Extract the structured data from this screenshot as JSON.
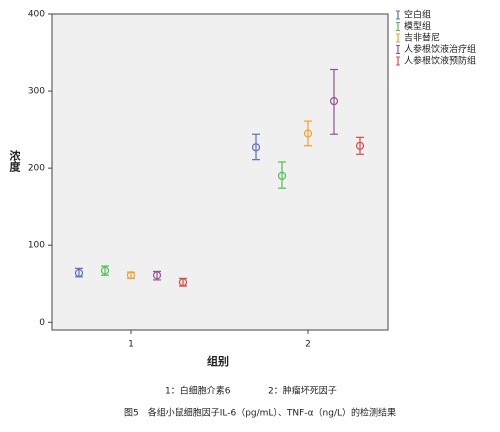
{
  "chart_data": {
    "type": "errorbar",
    "xlabel": "组别",
    "ylabel": "浓度",
    "categories": [
      "1",
      "2"
    ],
    "ylim": [
      -10,
      400
    ],
    "yticks": [
      0,
      100,
      200,
      300,
      400
    ],
    "legend": "outside-right",
    "series": [
      {
        "name": "空白组",
        "color": "#5b6fc4",
        "values": [
          64,
          227
        ],
        "low": [
          59,
          211
        ],
        "high": [
          70,
          244
        ]
      },
      {
        "name": "模型组",
        "color": "#4fc04f",
        "values": [
          67,
          190
        ],
        "low": [
          61,
          174
        ],
        "high": [
          73,
          208
        ]
      },
      {
        "name": "吉非替尼",
        "color": "#f0a030",
        "values": [
          61,
          245
        ],
        "low": [
          57,
          229
        ],
        "high": [
          65,
          261
        ]
      },
      {
        "name": "人参根饮液治疗组",
        "color": "#9a4f9a",
        "values": [
          61,
          287
        ],
        "low": [
          55,
          244
        ],
        "high": [
          66,
          328
        ]
      },
      {
        "name": "人参根饮液预防组",
        "color": "#e04848",
        "values": [
          52,
          229
        ],
        "low": [
          47,
          218
        ],
        "high": [
          57,
          240
        ]
      }
    ],
    "notes": [
      "1：白细胞介素6",
      "2：肿瘤坏死因子"
    ],
    "caption": "图5　各组小鼠细胞因子IL-6（pg/mL）、TNF-α（ng/L）的检测结果"
  }
}
